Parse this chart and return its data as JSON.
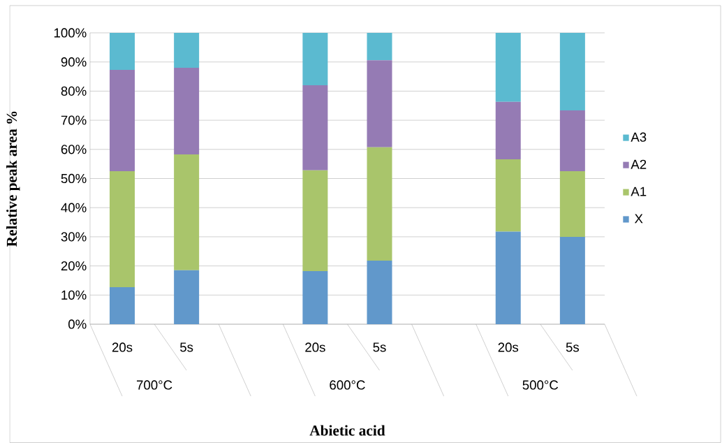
{
  "chart_data": {
    "type": "bar",
    "stacked": true,
    "xlabel": "Abietic acid",
    "ylabel": "Relative peak area %",
    "categories": [
      "20s",
      "5s",
      null,
      "20s",
      "5s",
      null,
      "20s",
      "5s"
    ],
    "annotations": [
      "700°C",
      "600°C",
      "500°C"
    ],
    "series": [
      {
        "name": "X",
        "color": "#6198cb",
        "values": [
          12.7,
          18.5,
          null,
          18.2,
          21.8,
          null,
          31.8,
          30.0
        ]
      },
      {
        "name": "A1",
        "color": "#a9c56b",
        "values": [
          39.8,
          39.8,
          null,
          34.6,
          38.9,
          null,
          24.8,
          22.5
        ]
      },
      {
        "name": "A2",
        "color": "#957bb4",
        "values": [
          34.8,
          29.7,
          null,
          29.2,
          29.9,
          null,
          19.7,
          20.9
        ]
      },
      {
        "name": "A3",
        "color": "#5bbad0",
        "values": [
          12.7,
          12.0,
          null,
          18.0,
          9.4,
          null,
          23.7,
          26.6
        ]
      }
    ],
    "ylim": [
      0,
      100
    ],
    "yticks": [
      {
        "value": 0,
        "label": "0%"
      },
      {
        "value": 10,
        "label": "10%"
      },
      {
        "value": 20,
        "label": "20%"
      },
      {
        "value": 30,
        "label": "30%"
      },
      {
        "value": 40,
        "label": "40%"
      },
      {
        "value": 50,
        "label": "50%"
      },
      {
        "value": 60,
        "label": "60%"
      },
      {
        "value": 70,
        "label": "70%"
      },
      {
        "value": 80,
        "label": "80%"
      },
      {
        "value": 90,
        "label": "90%"
      },
      {
        "value": 100,
        "label": "100%"
      }
    ],
    "grid": "y",
    "legend": "right"
  }
}
